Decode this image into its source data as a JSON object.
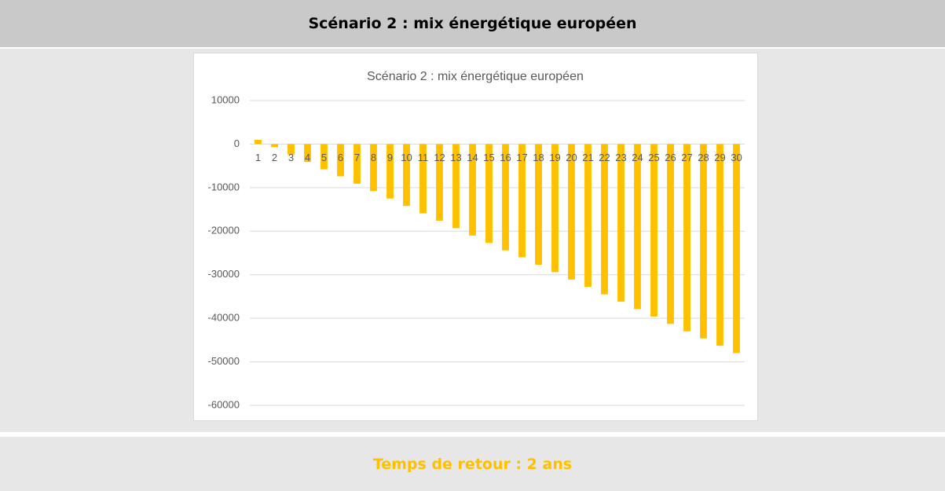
{
  "header": {
    "title": "Scénario 2 : mix énergétique européen"
  },
  "chart_data": {
    "type": "bar",
    "title": "Scénario 2 : mix énergétique européen",
    "categories": [
      "1",
      "2",
      "3",
      "4",
      "5",
      "6",
      "7",
      "8",
      "9",
      "10",
      "11",
      "12",
      "13",
      "14",
      "15",
      "16",
      "17",
      "18",
      "19",
      "20",
      "21",
      "22",
      "23",
      "24",
      "25",
      "26",
      "27",
      "28",
      "29",
      "30"
    ],
    "values": [
      1000,
      -700,
      -2400,
      -4100,
      -5800,
      -7400,
      -9100,
      -10800,
      -12500,
      -14200,
      -15900,
      -17600,
      -19300,
      -21000,
      -22700,
      -24400,
      -26000,
      -27700,
      -29400,
      -31100,
      -32800,
      -34500,
      -36200,
      -37900,
      -39600,
      -41300,
      -43000,
      -44600,
      -46300,
      -48000
    ],
    "color": "#ffc000",
    "ylim": [
      -60000,
      10000
    ],
    "yticks": [
      10000,
      0,
      -10000,
      -20000,
      -30000,
      -40000,
      -50000,
      -60000
    ],
    "grid": true
  },
  "footer": {
    "text": "Temps de retour : 2 ans"
  }
}
